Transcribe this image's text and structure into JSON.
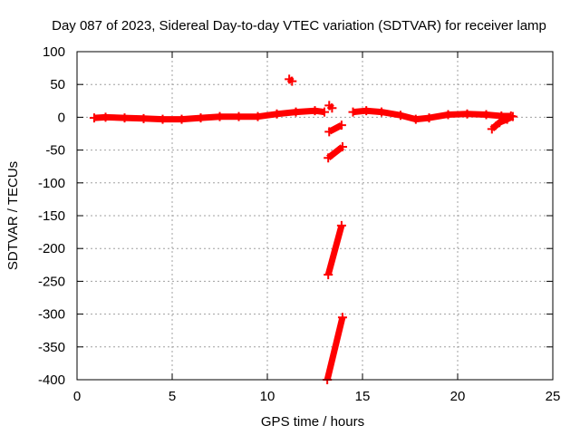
{
  "chart_data": {
    "type": "scatter",
    "title": "Day 087 of 2023, Sidereal Day-to-day VTEC variation (SDTVAR) for receiver lamp",
    "xlabel": "GPS time / hours",
    "ylabel": "SDTVAR / TECUs",
    "xlim": [
      0,
      25
    ],
    "ylim": [
      -400,
      100
    ],
    "xticks": [
      0,
      5,
      10,
      15,
      20,
      25
    ],
    "yticks": [
      100,
      50,
      0,
      -50,
      -100,
      -150,
      -200,
      -250,
      -300,
      -350,
      -400
    ],
    "grid": true,
    "legend": "none",
    "series_color": "#ff0000",
    "segments": [
      {
        "x": [
          0.9,
          1.5,
          2.5,
          3.5,
          4.5,
          5.5,
          6.5,
          7.5,
          8.5,
          9.5,
          10.5,
          11.5,
          12.5,
          13.0
        ],
        "y": [
          -1,
          0,
          -1,
          -2,
          -3,
          -3,
          -1,
          1,
          1,
          1,
          5,
          8,
          10,
          8
        ]
      },
      {
        "x": [
          11.15,
          11.3
        ],
        "y": [
          58,
          55
        ]
      },
      {
        "x": [
          13.25,
          13.4
        ],
        "y": [
          18,
          14
        ]
      },
      {
        "x": [
          13.25,
          13.9
        ],
        "y": [
          -22,
          -12
        ]
      },
      {
        "x": [
          13.2,
          13.95
        ],
        "y": [
          -62,
          -45
        ]
      },
      {
        "x": [
          13.2,
          13.9
        ],
        "y": [
          -240,
          -165
        ]
      },
      {
        "x": [
          13.15,
          13.95
        ],
        "y": [
          -400,
          -305
        ]
      },
      {
        "x": [
          14.5,
          15.2,
          16.0,
          17.0,
          17.8,
          18.5,
          19.5,
          20.5,
          21.5,
          22.3,
          22.8
        ],
        "y": [
          8,
          10,
          8,
          3,
          -3,
          -1,
          4,
          5,
          4,
          2,
          2
        ]
      },
      {
        "x": [
          21.8,
          22.2,
          22.6,
          22.9
        ],
        "y": [
          -18,
          -8,
          -3,
          1
        ]
      }
    ]
  }
}
